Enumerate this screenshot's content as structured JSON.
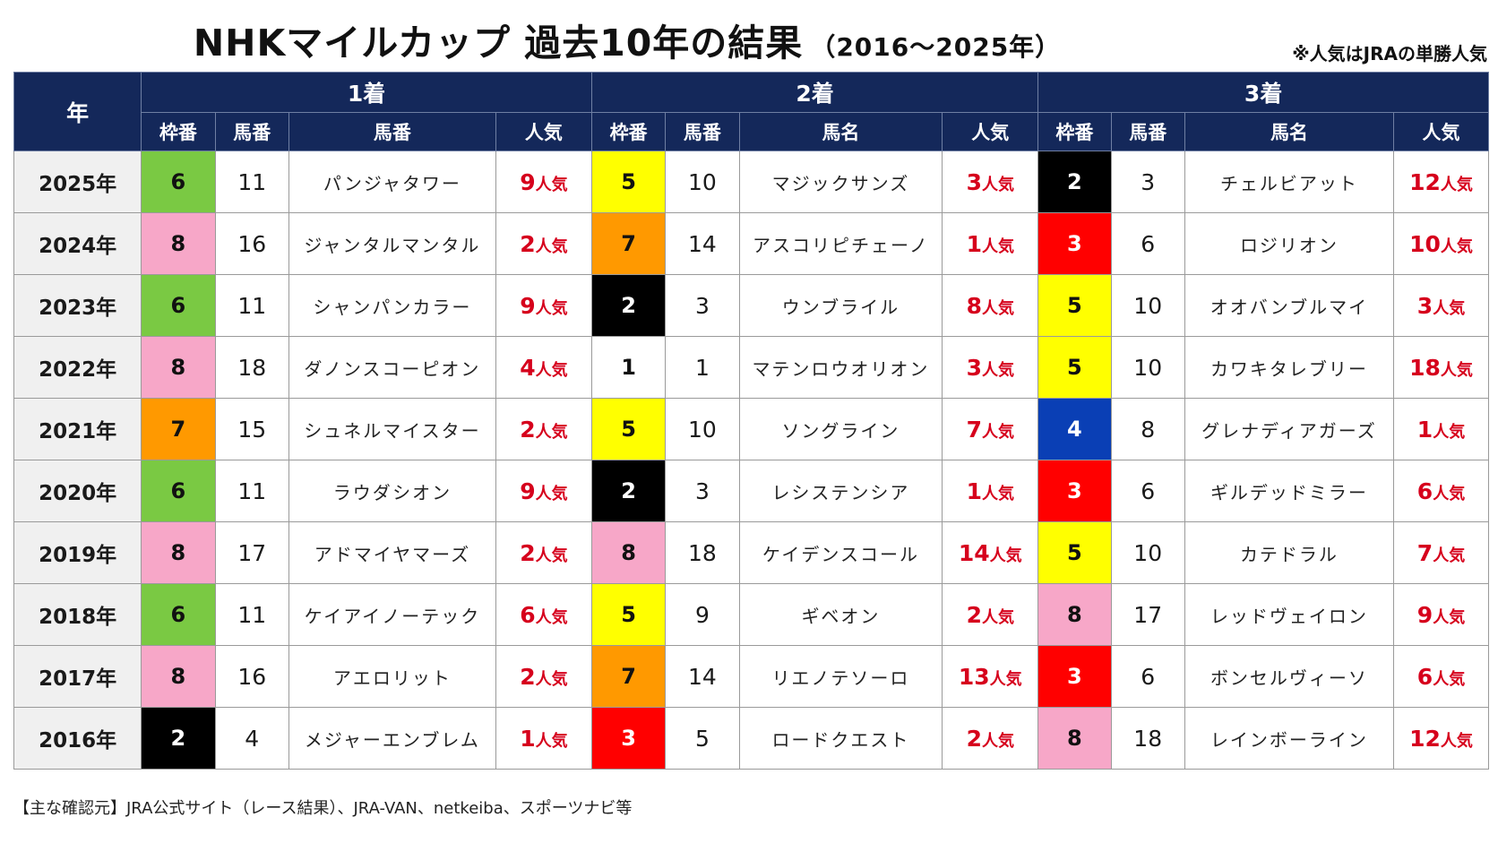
{
  "title": {
    "main": "NHKマイルカップ 過去10年の結果",
    "sub": "（2016～2025年）"
  },
  "note": "※人気はJRAの単勝人気",
  "headers": {
    "year": "年",
    "ranks": [
      "1着",
      "2着",
      "3着"
    ],
    "first": [
      "枠番",
      "馬番",
      "馬番",
      "人気"
    ],
    "second": [
      "枠番",
      "馬番",
      "馬名",
      "人気"
    ],
    "third": [
      "枠番",
      "馬番",
      "馬名",
      "人気"
    ]
  },
  "pop_unit": "人気",
  "gate_colors": {
    "1": "#ffffff",
    "2": "#000000",
    "3": "#ff0000",
    "4": "#0a3fb5",
    "5": "#ffff00",
    "6": "#7ac943",
    "7": "#ff9900",
    "8": "#f7a7c8"
  },
  "rows": [
    {
      "year": "2025年",
      "r1": {
        "gate": "6",
        "num": "11",
        "name": "パンジャタワー",
        "pop": "9"
      },
      "r2": {
        "gate": "5",
        "num": "10",
        "name": "マジックサンズ",
        "pop": "3"
      },
      "r3": {
        "gate": "2",
        "num": "3",
        "name": "チェルビアット",
        "pop": "12"
      }
    },
    {
      "year": "2024年",
      "r1": {
        "gate": "8",
        "num": "16",
        "name": "ジャンタルマンタル",
        "pop": "2"
      },
      "r2": {
        "gate": "7",
        "num": "14",
        "name": "アスコリピチェーノ",
        "pop": "1"
      },
      "r3": {
        "gate": "3",
        "num": "6",
        "name": "ロジリオン",
        "pop": "10"
      }
    },
    {
      "year": "2023年",
      "r1": {
        "gate": "6",
        "num": "11",
        "name": "シャンパンカラー",
        "pop": "9"
      },
      "r2": {
        "gate": "2",
        "num": "3",
        "name": "ウンブライル",
        "pop": "8"
      },
      "r3": {
        "gate": "5",
        "num": "10",
        "name": "オオバンブルマイ",
        "pop": "3"
      }
    },
    {
      "year": "2022年",
      "r1": {
        "gate": "8",
        "num": "18",
        "name": "ダノンスコーピオン",
        "pop": "4"
      },
      "r2": {
        "gate": "1",
        "num": "1",
        "name": "マテンロウオリオン",
        "pop": "3"
      },
      "r3": {
        "gate": "5",
        "num": "10",
        "name": "カワキタレブリー",
        "pop": "18"
      }
    },
    {
      "year": "2021年",
      "r1": {
        "gate": "7",
        "num": "15",
        "name": "シュネルマイスター",
        "pop": "2"
      },
      "r2": {
        "gate": "5",
        "num": "10",
        "name": "ソングライン",
        "pop": "7"
      },
      "r3": {
        "gate": "4",
        "num": "8",
        "name": "グレナディアガーズ",
        "pop": "1"
      }
    },
    {
      "year": "2020年",
      "r1": {
        "gate": "6",
        "num": "11",
        "name": "ラウダシオン",
        "pop": "9"
      },
      "r2": {
        "gate": "2",
        "num": "3",
        "name": "レシステンシア",
        "pop": "1"
      },
      "r3": {
        "gate": "3",
        "num": "6",
        "name": "ギルデッドミラー",
        "pop": "6"
      }
    },
    {
      "year": "2019年",
      "r1": {
        "gate": "8",
        "num": "17",
        "name": "アドマイヤマーズ",
        "pop": "2"
      },
      "r2": {
        "gate": "8",
        "num": "18",
        "name": "ケイデンスコール",
        "pop": "14"
      },
      "r3": {
        "gate": "5",
        "num": "10",
        "name": "カテドラル",
        "pop": "7"
      }
    },
    {
      "year": "2018年",
      "r1": {
        "gate": "6",
        "num": "11",
        "name": "ケイアイノーテック",
        "pop": "6"
      },
      "r2": {
        "gate": "5",
        "num": "9",
        "name": "ギベオン",
        "pop": "2"
      },
      "r3": {
        "gate": "8",
        "num": "17",
        "name": "レッドヴェイロン",
        "pop": "9"
      }
    },
    {
      "year": "2017年",
      "r1": {
        "gate": "8",
        "num": "16",
        "name": "アエロリット",
        "pop": "2"
      },
      "r2": {
        "gate": "7",
        "num": "14",
        "name": "リエノテソーロ",
        "pop": "13"
      },
      "r3": {
        "gate": "3",
        "num": "6",
        "name": "ボンセルヴィーソ",
        "pop": "6"
      }
    },
    {
      "year": "2016年",
      "r1": {
        "gate": "2",
        "num": "4",
        "name": "メジャーエンブレム",
        "pop": "1"
      },
      "r2": {
        "gate": "3",
        "num": "5",
        "name": "ロードクエスト",
        "pop": "2"
      },
      "r3": {
        "gate": "8",
        "num": "18",
        "name": "レインボーライン",
        "pop": "12"
      }
    }
  ],
  "source": "【主な確認元】JRA公式サイト（レース結果）、JRA-VAN、netkeiba、スポーツナビ等"
}
